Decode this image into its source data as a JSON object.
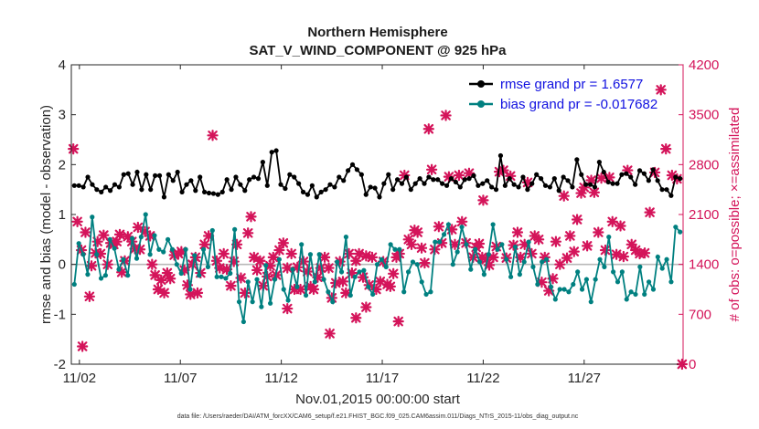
{
  "chart_data": {
    "type": "line",
    "title_line1": "Northern Hemisphere",
    "title_line2": "SAT_V_WIND_COMPONENT @ 925 hPa",
    "xlabel": "Nov.01,2015 00:00:00 start",
    "ylabel_left": "rmse and bias (model - observation)",
    "ylabel_right": "# of obs: o=possible; ×=assimilated",
    "footnote": "data file: /Users/raeder/DAI/ATM_forcXX/CAM6_setup/f.e21.FHIST_BGC.f09_025.CAM6assim.011/Diags_NTrS_2015-11/obs_diag_output.nc",
    "ylim_left": [
      -2,
      4
    ],
    "ylim_right": [
      0,
      4200
    ],
    "xlim_days": [
      0.6,
      30.9
    ],
    "x_tick_days": [
      1,
      6,
      11,
      16,
      21,
      26
    ],
    "x_tick_labels": [
      "11/02",
      "11/07",
      "11/12",
      "11/17",
      "11/22",
      "11/27"
    ],
    "y_ticks_left": [
      -2,
      -1,
      0,
      1,
      2,
      3,
      4
    ],
    "y_tick_labels_left": [
      "-2",
      "-1",
      "0",
      "1",
      "2",
      "3",
      "4"
    ],
    "y_ticks_right": [
      0,
      700,
      1400,
      2100,
      2800,
      3500,
      4200
    ],
    "y_tick_labels_right": [
      "0",
      "700",
      "1400",
      "2100",
      "2800",
      "3500",
      "4200"
    ],
    "legend": [
      {
        "label": "rmse grand pr = 1.6577",
        "color": "#000000"
      },
      {
        "label": "bias grand pr = -0.017682",
        "color": "#008080"
      }
    ],
    "series": [
      {
        "name": "rmse",
        "color": "#000000",
        "axis": "left",
        "values": [
          1.58,
          1.58,
          1.55,
          1.75,
          1.6,
          1.5,
          1.45,
          1.55,
          1.48,
          1.6,
          1.55,
          1.8,
          1.82,
          1.6,
          1.85,
          1.5,
          1.8,
          1.5,
          1.78,
          1.78,
          1.35,
          1.8,
          1.68,
          1.85,
          1.45,
          1.6,
          1.68,
          1.48,
          1.75,
          1.45,
          1.43,
          1.42,
          1.4,
          1.45,
          1.7,
          1.5,
          1.75,
          1.6,
          1.48,
          1.7,
          1.75,
          1.72,
          2.05,
          1.58,
          2.25,
          2.28,
          1.6,
          1.52,
          1.8,
          1.75,
          1.62,
          1.45,
          1.4,
          1.58,
          1.35,
          1.45,
          1.5,
          1.6,
          1.55,
          1.75,
          1.68,
          1.88,
          2.0,
          1.9,
          1.8,
          1.4,
          1.55,
          1.53,
          1.35,
          1.62,
          1.8,
          1.5,
          1.7,
          1.62,
          1.75,
          1.5,
          1.62,
          1.72,
          1.62,
          1.75,
          1.7,
          1.7,
          1.62,
          1.58,
          1.72,
          1.65,
          1.55,
          1.7,
          1.72,
          1.78,
          1.58,
          1.62,
          1.68,
          1.55,
          1.5,
          2.18,
          1.58,
          1.72,
          1.6,
          1.55,
          1.75,
          1.5,
          1.62,
          1.8,
          1.72,
          1.58,
          1.55,
          1.72,
          1.48,
          1.75,
          1.68,
          1.55,
          2.1,
          1.8,
          1.6,
          1.6,
          1.55,
          2.05,
          1.85,
          1.65,
          1.62,
          1.62,
          1.8,
          1.82,
          1.75,
          1.6,
          1.88,
          1.82,
          1.68,
          1.9,
          1.68,
          1.5,
          1.5,
          1.38,
          1.75,
          1.72
        ]
      },
      {
        "name": "bias",
        "color": "#008080",
        "axis": "left",
        "values": [
          -0.4,
          0.42,
          0.2,
          -0.2,
          0.95,
          0.2,
          -0.28,
          -0.22,
          0.5,
          0.32,
          -0.1,
          0.1,
          -0.22,
          0.52,
          0.12,
          0.55,
          1.0,
          0.2,
          0.58,
          0.3,
          0.25,
          0.5,
          0.3,
          0.0,
          -0.18,
          0.3,
          -0.5,
          0.18,
          -0.22,
          0.3,
          -0.05,
          0.68,
          -0.25,
          -0.25,
          -0.28,
          -0.18,
          0.7,
          -0.75,
          -1.15,
          -0.35,
          -0.75,
          -0.3,
          -0.85,
          -0.02,
          -0.78,
          -0.3,
          0.1,
          -0.5,
          -0.72,
          -0.1,
          -0.45,
          0.4,
          -0.62,
          0.2,
          -0.35,
          0.2,
          -0.3,
          -0.55,
          -0.75,
          0.05,
          -0.15,
          0.55,
          -0.62,
          -0.25,
          -0.15,
          -0.12,
          -0.45,
          -0.6,
          0.0,
          0.1,
          -0.05,
          0.4,
          0.3,
          0.3,
          -0.55,
          -0.15,
          0.05,
          0.0,
          -0.35,
          -0.6,
          -0.55,
          0.45,
          0.45,
          0.6,
          0.8,
          0.0,
          0.25,
          0.75,
          0.4,
          -0.1,
          0.3,
          0.05,
          -0.2,
          0.2,
          0.8,
          0.3,
          0.4,
          0.1,
          -0.25,
          0.35,
          -0.2,
          0.05,
          0.45,
          -0.05,
          -0.4,
          0.05,
          0.1,
          -0.45,
          -0.7,
          -0.5,
          -0.5,
          -0.55,
          -0.4,
          -0.15,
          -0.5,
          -0.3,
          -0.75,
          -0.3,
          0.1,
          -0.05,
          0.55,
          -0.15,
          -0.35,
          -0.15,
          -0.7,
          -0.55,
          -0.6,
          -0.05,
          -0.6,
          -0.35,
          -0.5,
          0.15,
          -0.08,
          0.1,
          -0.35,
          0.75,
          0.65
        ]
      },
      {
        "name": "obs_assimilated",
        "color": "#d4145a",
        "axis": "right",
        "marker": "x",
        "points": [
          [
            0.7,
            3020
          ],
          [
            0.9,
            2000
          ],
          [
            1.1,
            1600
          ],
          [
            1.3,
            1850
          ],
          [
            1.5,
            950
          ],
          [
            1.6,
            1380
          ],
          [
            1.8,
            1560
          ],
          [
            1.9,
            1720
          ],
          [
            2.05,
            1550
          ],
          [
            2.2,
            1810
          ],
          [
            2.4,
            1400
          ],
          [
            2.55,
            1700
          ],
          [
            2.7,
            1680
          ],
          [
            2.85,
            1720
          ],
          [
            3.0,
            1820
          ],
          [
            3.1,
            1290
          ],
          [
            3.25,
            1450
          ],
          [
            3.4,
            1790
          ],
          [
            3.6,
            1720
          ],
          [
            3.75,
            1620
          ],
          [
            3.9,
            1920
          ],
          [
            4.0,
            1610
          ],
          [
            4.25,
            1860
          ],
          [
            4.5,
            1800
          ],
          [
            4.6,
            1400
          ],
          [
            4.75,
            1250
          ],
          [
            4.9,
            1050
          ],
          [
            5.05,
            1180
          ],
          [
            5.2,
            1000
          ],
          [
            5.35,
            1280
          ],
          [
            5.5,
            1200
          ],
          [
            5.7,
            1530
          ],
          [
            5.9,
            1550
          ],
          [
            6.05,
            1580
          ],
          [
            6.2,
            1320
          ],
          [
            6.35,
            1110
          ],
          [
            6.5,
            980
          ],
          [
            6.6,
            1400
          ],
          [
            6.75,
            1500
          ],
          [
            6.85,
            1000
          ],
          [
            7.0,
            1280
          ],
          [
            7.2,
            1680
          ],
          [
            7.4,
            1800
          ],
          [
            7.6,
            3210
          ],
          [
            7.8,
            1450
          ],
          [
            7.95,
            1350
          ],
          [
            8.15,
            1550
          ],
          [
            8.3,
            1330
          ],
          [
            8.5,
            1100
          ],
          [
            8.65,
            1440
          ],
          [
            8.8,
            1680
          ],
          [
            9.0,
            1210
          ],
          [
            9.2,
            1000
          ],
          [
            9.35,
            1840
          ],
          [
            9.5,
            2070
          ],
          [
            9.65,
            1500
          ],
          [
            9.8,
            1320
          ],
          [
            9.95,
            1450
          ],
          [
            10.1,
            1100
          ],
          [
            10.3,
            1230
          ],
          [
            10.45,
            1380
          ],
          [
            10.6,
            1500
          ],
          [
            10.75,
            1250
          ],
          [
            10.9,
            1600
          ],
          [
            11.1,
            1700
          ],
          [
            11.3,
            1350
          ],
          [
            11.5,
            1550
          ],
          [
            11.65,
            1050
          ],
          [
            11.8,
            1360
          ],
          [
            11.95,
            1050
          ],
          [
            12.1,
            1440
          ],
          [
            12.3,
            1300
          ],
          [
            12.45,
            1090
          ],
          [
            12.6,
            1050
          ],
          [
            12.8,
            1220
          ],
          [
            12.95,
            1350
          ],
          [
            13.15,
            1500
          ],
          [
            13.35,
            1350
          ],
          [
            13.5,
            930
          ],
          [
            13.7,
            1140
          ],
          [
            13.9,
            1440
          ],
          [
            14.05,
            1160
          ],
          [
            14.2,
            1000
          ],
          [
            14.35,
            1550
          ],
          [
            14.5,
            1280
          ],
          [
            14.7,
            1450
          ],
          [
            14.85,
            1550
          ],
          [
            15.05,
            1220
          ],
          [
            15.2,
            1520
          ],
          [
            15.35,
            1110
          ],
          [
            15.5,
            1500
          ],
          [
            15.7,
            1050
          ],
          [
            15.9,
            1160
          ],
          [
            16.05,
            1440
          ],
          [
            16.25,
            1120
          ],
          [
            16.4,
            1090
          ],
          [
            16.55,
            1270
          ],
          [
            16.7,
            1500
          ],
          [
            16.85,
            1550
          ],
          [
            17.1,
            2650
          ],
          [
            17.3,
            1750
          ],
          [
            17.45,
            1680
          ],
          [
            17.6,
            1880
          ],
          [
            17.75,
            1850
          ],
          [
            17.95,
            1630
          ],
          [
            18.1,
            1420
          ],
          [
            18.3,
            3300
          ],
          [
            18.45,
            2730
          ],
          [
            18.6,
            1610
          ],
          [
            18.8,
            1930
          ],
          [
            18.95,
            1700
          ],
          [
            19.15,
            3490
          ],
          [
            19.3,
            2630
          ],
          [
            19.45,
            1890
          ],
          [
            19.6,
            1680
          ],
          [
            19.8,
            2650
          ],
          [
            19.95,
            2000
          ],
          [
            20.15,
            1700
          ],
          [
            20.3,
            2680
          ],
          [
            20.5,
            1500
          ],
          [
            20.65,
            1640
          ],
          [
            20.8,
            1690
          ],
          [
            20.95,
            1500
          ],
          [
            21.15,
            1470
          ],
          [
            21.3,
            1390
          ],
          [
            21.5,
            1500
          ],
          [
            21.65,
            1650
          ],
          [
            21.8,
            2700
          ],
          [
            22.0,
            2720
          ],
          [
            22.15,
            1490
          ],
          [
            22.35,
            2640
          ],
          [
            22.5,
            1670
          ],
          [
            22.7,
            1850
          ],
          [
            22.85,
            1500
          ],
          [
            23.05,
            1680
          ],
          [
            23.2,
            2550
          ],
          [
            23.4,
            1550
          ],
          [
            23.55,
            1800
          ],
          [
            23.75,
            1750
          ],
          [
            23.9,
            1150
          ],
          [
            24.05,
            1500
          ],
          [
            24.25,
            1030
          ],
          [
            24.45,
            1200
          ],
          [
            24.6,
            1720
          ],
          [
            24.8,
            1400
          ],
          [
            25.0,
            2360
          ],
          [
            25.15,
            1490
          ],
          [
            25.3,
            1800
          ],
          [
            25.5,
            1580
          ],
          [
            25.65,
            2030
          ],
          [
            25.85,
            2400
          ],
          [
            26.0,
            2480
          ],
          [
            26.15,
            1660
          ],
          [
            26.35,
            2580
          ],
          [
            26.5,
            2410
          ],
          [
            26.7,
            1850
          ],
          [
            26.85,
            2610
          ],
          [
            27.05,
            1600
          ],
          [
            27.25,
            2620
          ],
          [
            27.4,
            2000
          ],
          [
            27.6,
            1540
          ],
          [
            27.8,
            1940
          ],
          [
            27.95,
            1510
          ],
          [
            28.15,
            2720
          ],
          [
            28.35,
            1680
          ],
          [
            28.55,
            1600
          ],
          [
            28.75,
            1550
          ],
          [
            29.0,
            1560
          ],
          [
            29.25,
            2130
          ],
          [
            29.5,
            2690
          ],
          [
            29.8,
            3850
          ],
          [
            30.05,
            3020
          ],
          [
            30.35,
            2650
          ],
          [
            30.6,
            2600
          ],
          [
            30.85,
            0
          ]
        ]
      },
      {
        "name": "obs_isolated",
        "color": "#d4145a",
        "axis": "right",
        "marker": "x",
        "points": [
          [
            1.15,
            250
          ],
          [
            11.3,
            780
          ],
          [
            13.4,
            430
          ],
          [
            15.2,
            800
          ],
          [
            16.8,
            600
          ],
          [
            21.0,
            2300
          ],
          [
            14.7,
            650
          ]
        ]
      }
    ]
  }
}
